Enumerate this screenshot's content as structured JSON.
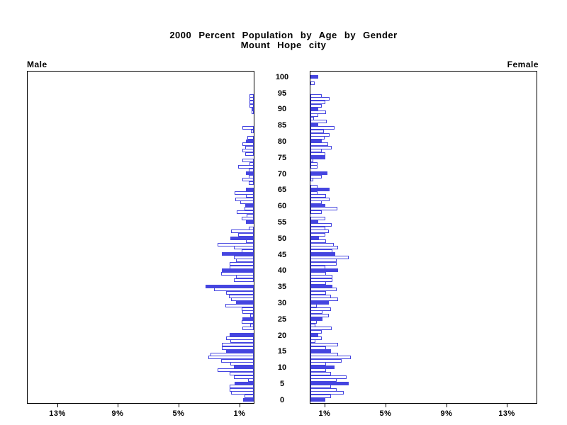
{
  "chart_data": {
    "type": "bar",
    "variant": "population-pyramid",
    "title": "2000 Percent Population by Age by Gender",
    "subtitle": "Mount Hope city",
    "left_label": "Male",
    "right_label": "Female",
    "xlabel_unit": "%",
    "x_axis_max_percent": 15,
    "male_tick_values": [
      13,
      9,
      5,
      1
    ],
    "male_tick_labels": [
      "13%",
      "9%",
      "5%",
      "1%"
    ],
    "female_tick_values": [
      1,
      5,
      9,
      13
    ],
    "female_tick_labels": [
      "1%",
      "5%",
      "9%",
      "13%"
    ],
    "age_axis_ticks": [
      0,
      5,
      10,
      15,
      20,
      25,
      30,
      35,
      40,
      45,
      50,
      55,
      60,
      65,
      70,
      75,
      80,
      85,
      90,
      95,
      100
    ],
    "solid_bar_age_multiple": 5,
    "bar_color": "#4545e0",
    "open_bar_fill": "#ffffff",
    "ages": "index equals age 0-100",
    "male_percent_by_age": [
      0.7,
      0.62,
      1.5,
      1.58,
      1.58,
      1.27,
      0.39,
      1.32,
      1.58,
      2.36,
      1.32,
      1.55,
      2.17,
      2.98,
      2.85,
      1.81,
      2.12,
      2.08,
      1.55,
      1.81,
      1.57,
      0,
      0.76,
      0.25,
      0.78,
      0.73,
      0.25,
      0.74,
      0.78,
      1.86,
      1.15,
      1.5,
      1.64,
      1.8,
      2.6,
      3.19,
      0,
      1.3,
      1.16,
      2.16,
      2.12,
      1.58,
      1.57,
      1.15,
      1.29,
      2.09,
      0.81,
      1.32,
      2.37,
      0.53,
      1.55,
      1.04,
      1.5,
      0.34,
      0,
      0.51,
      0.8,
      0.45,
      1.1,
      0.6,
      0.57,
      0.9,
      1.22,
      0.51,
      1.27,
      0.5,
      0,
      0.34,
      0.76,
      0.31,
      0.53,
      0.31,
      1.05,
      0.3,
      0.73,
      0,
      0.56,
      0.74,
      0.56,
      0.76,
      0.5,
      0.4,
      0,
      0.19,
      0.76,
      0,
      0,
      0,
      0,
      0.14,
      0.14,
      0.28,
      0.28,
      0.28,
      0.28,
      0,
      0,
      0,
      0,
      0,
      0
    ],
    "female_percent_by_age": [
      0.97,
      1.36,
      2.21,
      1.74,
      1.36,
      2.52,
      1.74,
      2.36,
      1.36,
      1.05,
      1.59,
      1.05,
      2.05,
      2.67,
      1.82,
      1.36,
      1.05,
      1.82,
      0.32,
      0.74,
      0.53,
      0.74,
      1.4,
      0.32,
      0.43,
      0.81,
      1.2,
      0.81,
      1.36,
      0.43,
      1.2,
      1.82,
      1.36,
      1.05,
      1.74,
      1.43,
      1.05,
      1.43,
      1.43,
      1.05,
      1.82,
      0.97,
      1.71,
      1.74,
      2.52,
      1.62,
      1.43,
      1.82,
      1.55,
      1.05,
      0.58,
      0.97,
      1.2,
      0.97,
      1.39,
      0.5,
      0.97,
      0,
      0.74,
      1.78,
      0.97,
      0.74,
      1.28,
      1.02,
      0.47,
      1.25,
      0.47,
      0,
      0.19,
      0.77,
      1.12,
      0,
      0.47,
      0.47,
      0.19,
      1.0,
      0.97,
      0.74,
      1.39,
      1.17,
      0.74,
      0.94,
      1.28,
      0.89,
      1.59,
      0.5,
      1.09,
      0.22,
      0.53,
      1.02,
      0.5,
      0.74,
      0.97,
      1.25,
      0.74,
      0,
      0,
      0,
      0.27,
      0,
      0.5
    ]
  }
}
